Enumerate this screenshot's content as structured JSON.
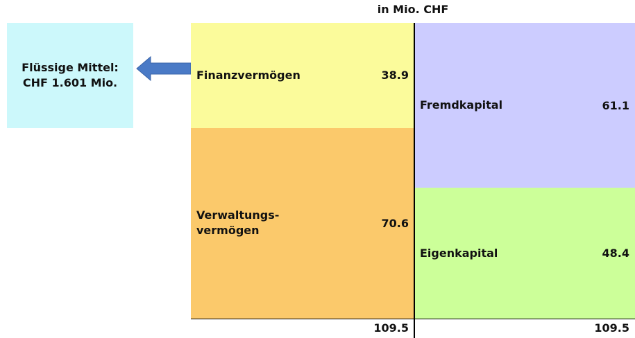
{
  "unit_label": "in Mio. CHF",
  "note": {
    "lines": [
      "Flüssige Mittel:",
      "CHF 1.601 Mio."
    ]
  },
  "assets": {
    "items": [
      {
        "label_lines": [
          "Finanzvermögen"
        ],
        "value": 38.9,
        "color": "#fbfb9b"
      },
      {
        "label_lines": [
          "Verwaltungs-",
          "vermögen"
        ],
        "value": 70.6,
        "color": "#fbc96b"
      }
    ],
    "total": 109.5
  },
  "liabilities": {
    "items": [
      {
        "label_lines": [
          "Fremdkapital"
        ],
        "value": 61.1,
        "color": "#ccccff"
      },
      {
        "label_lines": [
          "Eigenkapital"
        ],
        "value": 48.4,
        "color": "#ccff99"
      }
    ],
    "total": 109.5
  }
}
